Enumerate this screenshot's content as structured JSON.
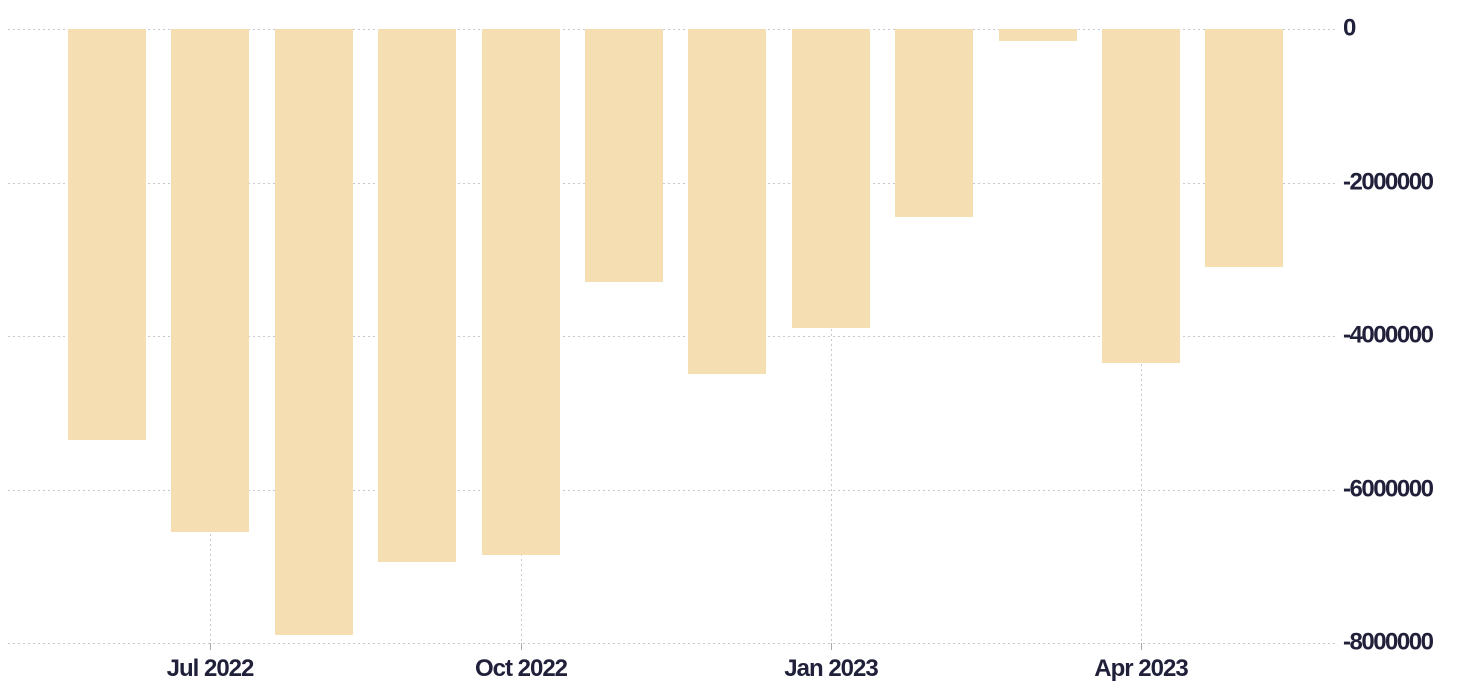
{
  "chart_data": {
    "type": "bar",
    "title": "",
    "categories": [
      "Jun 2022",
      "Jul 2022",
      "Aug 2022",
      "Sep 2022",
      "Oct 2022",
      "Nov 2022",
      "Dec 2022",
      "Jan 2023",
      "Feb 2023",
      "Mar 2023",
      "Apr 2023",
      "May 2023"
    ],
    "values": [
      -5350000,
      -6550000,
      -7900000,
      -6950000,
      -6850000,
      -3300000,
      -4500000,
      -3900000,
      -2450000,
      -150000,
      -4350000,
      -3100000
    ],
    "x_ticks": [
      {
        "index": 1,
        "label": "Jul 2022"
      },
      {
        "index": 4,
        "label": "Oct 2022"
      },
      {
        "index": 7,
        "label": "Jan 2023"
      },
      {
        "index": 10,
        "label": "Apr 2023"
      }
    ],
    "y_ticks": [
      {
        "value": 0,
        "label": "0"
      },
      {
        "value": -2000000,
        "label": "-2000000"
      },
      {
        "value": -4000000,
        "label": "-4000000"
      },
      {
        "value": -6000000,
        "label": "-6000000"
      },
      {
        "value": -8000000,
        "label": "-8000000"
      }
    ],
    "ylim": [
      -8000000,
      0
    ],
    "xlabel": "",
    "ylabel": "",
    "legend": null,
    "grid": "dotted",
    "y_axis_side": "right",
    "colors": {
      "bar": "#f4deb2",
      "grid": "#c9c9c9",
      "tick": "#aaaaaa",
      "label": "#20203a",
      "background": "#ffffff"
    }
  }
}
